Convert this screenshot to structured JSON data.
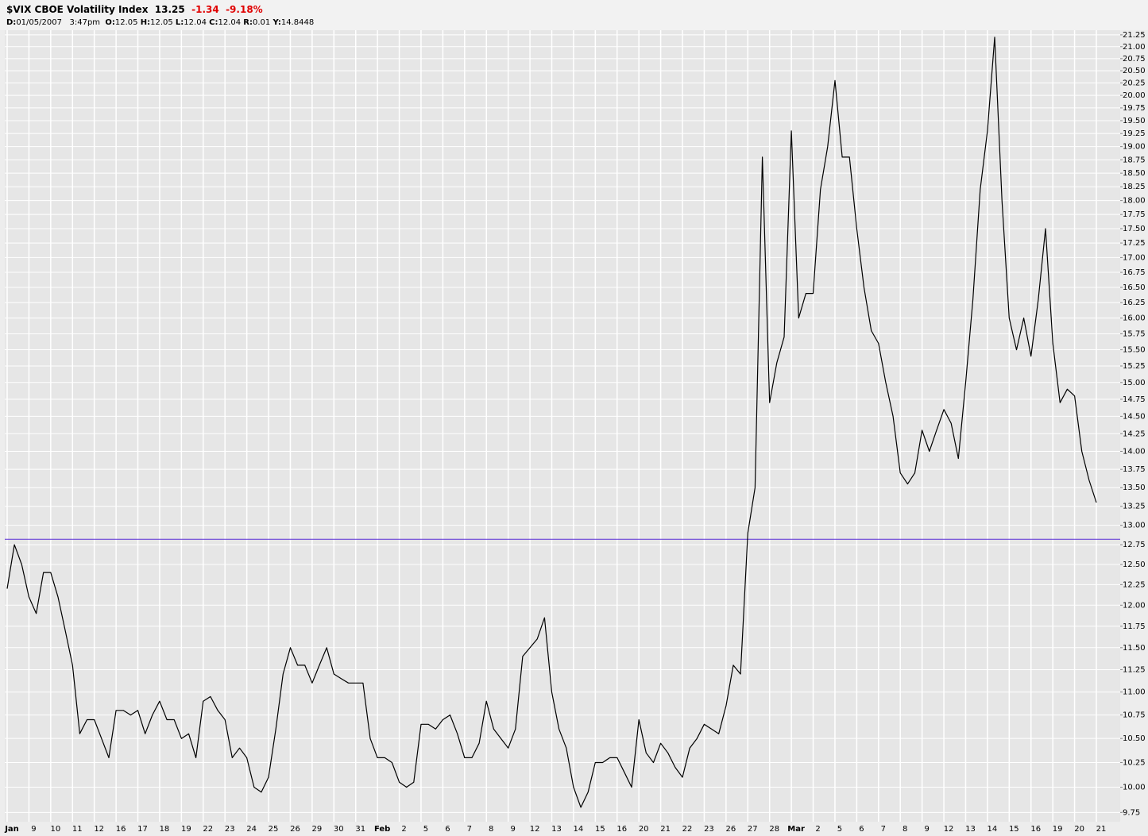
{
  "header": {
    "symbol": "$VIX CBOE Volatility Index",
    "last": "13.25",
    "change": "-1.34",
    "change_pct": "-9.18%",
    "info": [
      {
        "label": "D:",
        "value": "01/05/2007   3:47pm"
      },
      {
        "label": "O:",
        "value": "12.05"
      },
      {
        "label": "H:",
        "value": "12.05"
      },
      {
        "label": "L:",
        "value": "12.04"
      },
      {
        "label": "C:",
        "value": "12.04"
      },
      {
        "label": "R:",
        "value": "0.01"
      },
      {
        "label": "Y:",
        "value": "14.8448"
      }
    ]
  },
  "chart_data": {
    "type": "line",
    "log_scale": true,
    "grid": true,
    "background": "#e6e6e6",
    "grid_color": "#ffffff",
    "categories": [
      "Jan",
      null,
      null,
      "9",
      null,
      null,
      "10",
      null,
      null,
      "11",
      null,
      null,
      "12",
      null,
      null,
      "16",
      null,
      null,
      "17",
      null,
      null,
      "18",
      null,
      null,
      "19",
      null,
      null,
      "22",
      null,
      null,
      "23",
      null,
      null,
      "24",
      null,
      null,
      "25",
      null,
      null,
      "26",
      null,
      null,
      "29",
      null,
      null,
      "30",
      null,
      null,
      "31",
      null,
      null,
      "Feb",
      null,
      null,
      "2",
      null,
      null,
      "5",
      null,
      null,
      "6",
      null,
      null,
      "7",
      null,
      null,
      "8",
      null,
      null,
      "9",
      null,
      null,
      "12",
      null,
      null,
      "13",
      null,
      null,
      "14",
      null,
      null,
      "15",
      null,
      null,
      "16",
      null,
      null,
      "20",
      null,
      null,
      "21",
      null,
      null,
      "22",
      null,
      null,
      "23",
      null,
      null,
      "26",
      null,
      null,
      "27",
      null,
      null,
      "28",
      null,
      null,
      "Mar",
      null,
      null,
      "2",
      null,
      null,
      "5",
      null,
      null,
      "6",
      null,
      null,
      "7",
      null,
      null,
      "8",
      null,
      null,
      "9",
      null,
      null,
      "12",
      null,
      null,
      "13",
      null,
      null,
      "14",
      null,
      null,
      "15",
      null,
      null,
      "16",
      null,
      null,
      "19",
      null,
      null,
      "20",
      null,
      null,
      "21",
      null,
      null
    ],
    "series": [
      {
        "color": "#000000",
        "values": [
          12.2,
          12.75,
          12.5,
          12.1,
          11.9,
          12.4,
          12.4,
          12.1,
          11.7,
          11.3,
          10.55,
          10.7,
          10.7,
          10.5,
          10.3,
          10.8,
          10.8,
          10.75,
          10.8,
          10.55,
          10.75,
          10.9,
          10.7,
          10.7,
          10.5,
          10.55,
          10.3,
          10.9,
          10.95,
          10.8,
          10.7,
          10.3,
          10.4,
          10.3,
          10.0,
          9.95,
          10.1,
          10.6,
          11.2,
          11.5,
          11.3,
          11.3,
          11.1,
          11.3,
          11.5,
          11.2,
          11.15,
          11.1,
          11.1,
          11.1,
          10.5,
          10.3,
          10.3,
          10.25,
          10.05,
          10.0,
          10.05,
          10.65,
          10.65,
          10.6,
          10.7,
          10.75,
          10.55,
          10.3,
          10.3,
          10.45,
          10.9,
          10.6,
          10.5,
          10.4,
          10.6,
          11.4,
          11.5,
          11.6,
          11.85,
          11.0,
          10.6,
          10.4,
          10.0,
          9.8,
          9.95,
          10.25,
          10.25,
          10.3,
          10.3,
          10.15,
          10.0,
          10.7,
          10.35,
          10.25,
          10.45,
          10.35,
          10.2,
          10.1,
          10.4,
          10.5,
          10.65,
          10.6,
          10.55,
          10.85,
          11.3,
          11.2,
          12.9,
          13.5,
          18.8,
          14.7,
          15.3,
          15.7,
          19.3,
          16.0,
          16.4,
          16.4,
          18.2,
          19.0,
          20.3,
          18.8,
          18.8,
          17.5,
          16.5,
          15.8,
          15.6,
          15.0,
          14.5,
          13.7,
          13.55,
          13.7,
          14.3,
          14.0,
          14.3,
          14.6,
          14.4,
          13.9,
          15.0,
          16.3,
          18.2,
          19.3,
          21.2,
          18.0,
          16.0,
          15.5,
          16.0,
          15.4,
          16.3,
          17.5,
          15.6,
          14.7,
          14.9,
          14.8,
          14.0,
          13.6,
          13.3,
          null,
          null
        ]
      }
    ],
    "reference_lines": [
      {
        "value": 12.82,
        "color": "#5a2fd6"
      }
    ],
    "ylim": [
      9.66,
      21.35
    ],
    "yticks": [
      9.75,
      {
        "value": 10,
        "label": "10.00"
      },
      10.25,
      {
        "value": 10.5,
        "label": "10.50"
      },
      10.75,
      {
        "value": 11,
        "label": "11.00"
      },
      11.25,
      {
        "value": 11.5,
        "label": "11.50"
      },
      11.75,
      {
        "value": 12,
        "label": "12.00"
      },
      12.25,
      {
        "value": 12.5,
        "label": "12.50"
      },
      12.75,
      {
        "value": 13,
        "label": "13.00"
      },
      13.25,
      {
        "value": 13.5,
        "label": "13.50"
      },
      13.75,
      {
        "value": 14,
        "label": "14.00"
      },
      14.25,
      {
        "value": 14.5,
        "label": "14.50"
      },
      14.75,
      {
        "value": 15,
        "label": "15.00"
      },
      15.25,
      {
        "value": 15.5,
        "label": "15.50"
      },
      15.75,
      {
        "value": 16,
        "label": "16.00"
      },
      16.25,
      {
        "value": 16.5,
        "label": "16.50"
      },
      16.75,
      {
        "value": 17,
        "label": "17.00"
      },
      17.25,
      {
        "value": 17.5,
        "label": "17.50"
      },
      17.75,
      {
        "value": 18,
        "label": "18.00"
      },
      18.25,
      {
        "value": 18.5,
        "label": "18.50"
      },
      18.75,
      {
        "value": 19,
        "label": "19.00"
      },
      19.25,
      {
        "value": 19.5,
        "label": "19.50"
      },
      19.75,
      {
        "value": 20,
        "label": "20.00"
      },
      20.25,
      {
        "value": 20.5,
        "label": "20.50"
      },
      20.75,
      {
        "value": 21,
        "label": "21.00"
      },
      21.25
    ]
  }
}
